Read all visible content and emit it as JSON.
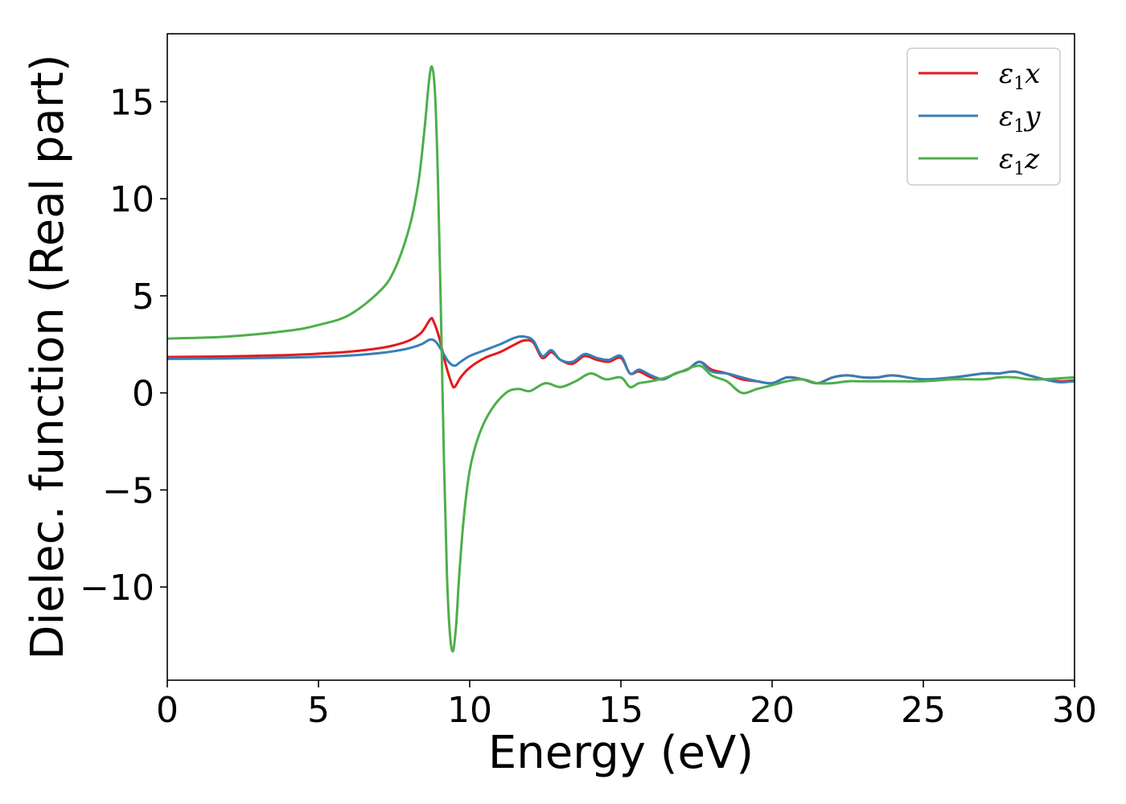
{
  "chart_data": {
    "type": "line",
    "title": "",
    "xlabel": "Energy (eV)",
    "ylabel": "Dielec. function (Real part)",
    "xlim": [
      0,
      30
    ],
    "ylim": [
      -14.8,
      18.5
    ],
    "xticks": [
      0,
      5,
      10,
      15,
      20,
      25,
      30
    ],
    "xtick_labels": [
      "0",
      "5",
      "10",
      "15",
      "20",
      "25",
      "30"
    ],
    "yticks": [
      -10,
      -5,
      0,
      5,
      10,
      15
    ],
    "ytick_labels": [
      "−10",
      "−5",
      "0",
      "5",
      "10",
      "15"
    ],
    "grid": false,
    "legend_position": "top-right",
    "series": [
      {
        "name": "ε1x",
        "legend_main": "ε",
        "legend_sub": "1",
        "legend_tail": "x",
        "color": "#e41a1c",
        "x": [
          0,
          2,
          4,
          5,
          6,
          7,
          7.5,
          8,
          8.4,
          8.7,
          8.8,
          9.0,
          9.2,
          9.4,
          9.5,
          9.7,
          10,
          10.5,
          11,
          11.5,
          11.8,
          12.1,
          12.4,
          12.7,
          13,
          13.4,
          13.8,
          14.2,
          14.6,
          15,
          15.3,
          15.6,
          16,
          16.4,
          16.8,
          17.2,
          17.6,
          18,
          18.5,
          19,
          19.5,
          20,
          20.5,
          21,
          21.5,
          22,
          22.5,
          23,
          23.5,
          24,
          25,
          26,
          27,
          27.5,
          28,
          28.5,
          29,
          29.5,
          30
        ],
        "y": [
          1.85,
          1.88,
          1.95,
          2.02,
          2.12,
          2.3,
          2.45,
          2.7,
          3.1,
          3.8,
          3.7,
          2.8,
          1.5,
          0.5,
          0.3,
          0.8,
          1.3,
          1.8,
          2.1,
          2.5,
          2.7,
          2.6,
          1.8,
          2.1,
          1.7,
          1.5,
          1.9,
          1.7,
          1.6,
          1.8,
          1.0,
          1.1,
          0.8,
          0.7,
          1.0,
          1.2,
          1.6,
          1.2,
          1.0,
          0.7,
          0.6,
          0.5,
          0.8,
          0.7,
          0.5,
          0.8,
          0.9,
          0.8,
          0.8,
          0.9,
          0.7,
          0.8,
          1.0,
          1.0,
          1.1,
          0.9,
          0.7,
          0.6,
          0.65
        ]
      },
      {
        "name": "ε1y",
        "legend_main": "ε",
        "legend_sub": "1",
        "legend_tail": "y",
        "color": "#377eb8",
        "x": [
          0,
          2,
          4,
          5,
          6,
          7,
          7.5,
          8,
          8.4,
          8.7,
          8.9,
          9.1,
          9.3,
          9.5,
          9.7,
          10,
          10.5,
          11,
          11.5,
          11.8,
          12.1,
          12.4,
          12.7,
          13,
          13.4,
          13.8,
          14.2,
          14.6,
          15,
          15.3,
          15.6,
          16,
          16.4,
          16.8,
          17.2,
          17.6,
          18,
          18.5,
          19,
          19.5,
          20,
          20.5,
          21,
          21.5,
          22,
          22.5,
          23,
          23.5,
          24,
          25,
          26,
          27,
          27.5,
          28,
          28.5,
          29,
          29.5,
          30
        ],
        "y": [
          1.75,
          1.77,
          1.82,
          1.86,
          1.92,
          2.05,
          2.15,
          2.3,
          2.5,
          2.75,
          2.6,
          2.1,
          1.6,
          1.4,
          1.6,
          1.9,
          2.2,
          2.5,
          2.85,
          2.9,
          2.7,
          1.9,
          2.2,
          1.7,
          1.6,
          2.0,
          1.8,
          1.7,
          1.9,
          1.0,
          1.2,
          0.9,
          0.7,
          1.0,
          1.2,
          1.6,
          1.1,
          1.0,
          0.8,
          0.6,
          0.5,
          0.8,
          0.7,
          0.5,
          0.8,
          0.9,
          0.8,
          0.8,
          0.9,
          0.7,
          0.8,
          1.0,
          1.0,
          1.1,
          0.9,
          0.7,
          0.55,
          0.6
        ]
      },
      {
        "name": "ε1z",
        "legend_main": "ε",
        "legend_sub": "1",
        "legend_tail": "z",
        "color": "#4daf4a",
        "x": [
          0,
          2,
          4,
          5,
          6,
          7,
          7.5,
          8,
          8.3,
          8.5,
          8.65,
          8.75,
          8.85,
          8.95,
          9.05,
          9.15,
          9.25,
          9.35,
          9.45,
          9.55,
          9.65,
          9.8,
          10,
          10.3,
          10.7,
          11.2,
          11.6,
          12,
          12.5,
          13,
          13.5,
          14,
          14.5,
          15,
          15.3,
          15.6,
          16,
          16.5,
          17,
          17.6,
          18,
          18.5,
          19,
          19.5,
          20,
          20.5,
          21,
          21.5,
          22,
          22.5,
          23,
          24,
          25,
          26,
          27,
          27.5,
          28,
          28.5,
          29,
          29.5,
          30
        ],
        "y": [
          2.8,
          2.9,
          3.2,
          3.5,
          4.0,
          5.2,
          6.3,
          8.5,
          10.8,
          13.5,
          16.0,
          16.8,
          15.5,
          11.0,
          4.0,
          -3.5,
          -9.5,
          -12.5,
          -13.3,
          -12.0,
          -9.5,
          -6.5,
          -4.0,
          -2.2,
          -0.9,
          0.0,
          0.2,
          0.1,
          0.5,
          0.3,
          0.6,
          1.0,
          0.7,
          0.8,
          0.3,
          0.5,
          0.6,
          0.8,
          1.1,
          1.4,
          0.9,
          0.6,
          0.0,
          0.2,
          0.4,
          0.6,
          0.7,
          0.5,
          0.5,
          0.6,
          0.6,
          0.6,
          0.6,
          0.7,
          0.7,
          0.8,
          0.8,
          0.7,
          0.7,
          0.75,
          0.8
        ]
      }
    ]
  }
}
